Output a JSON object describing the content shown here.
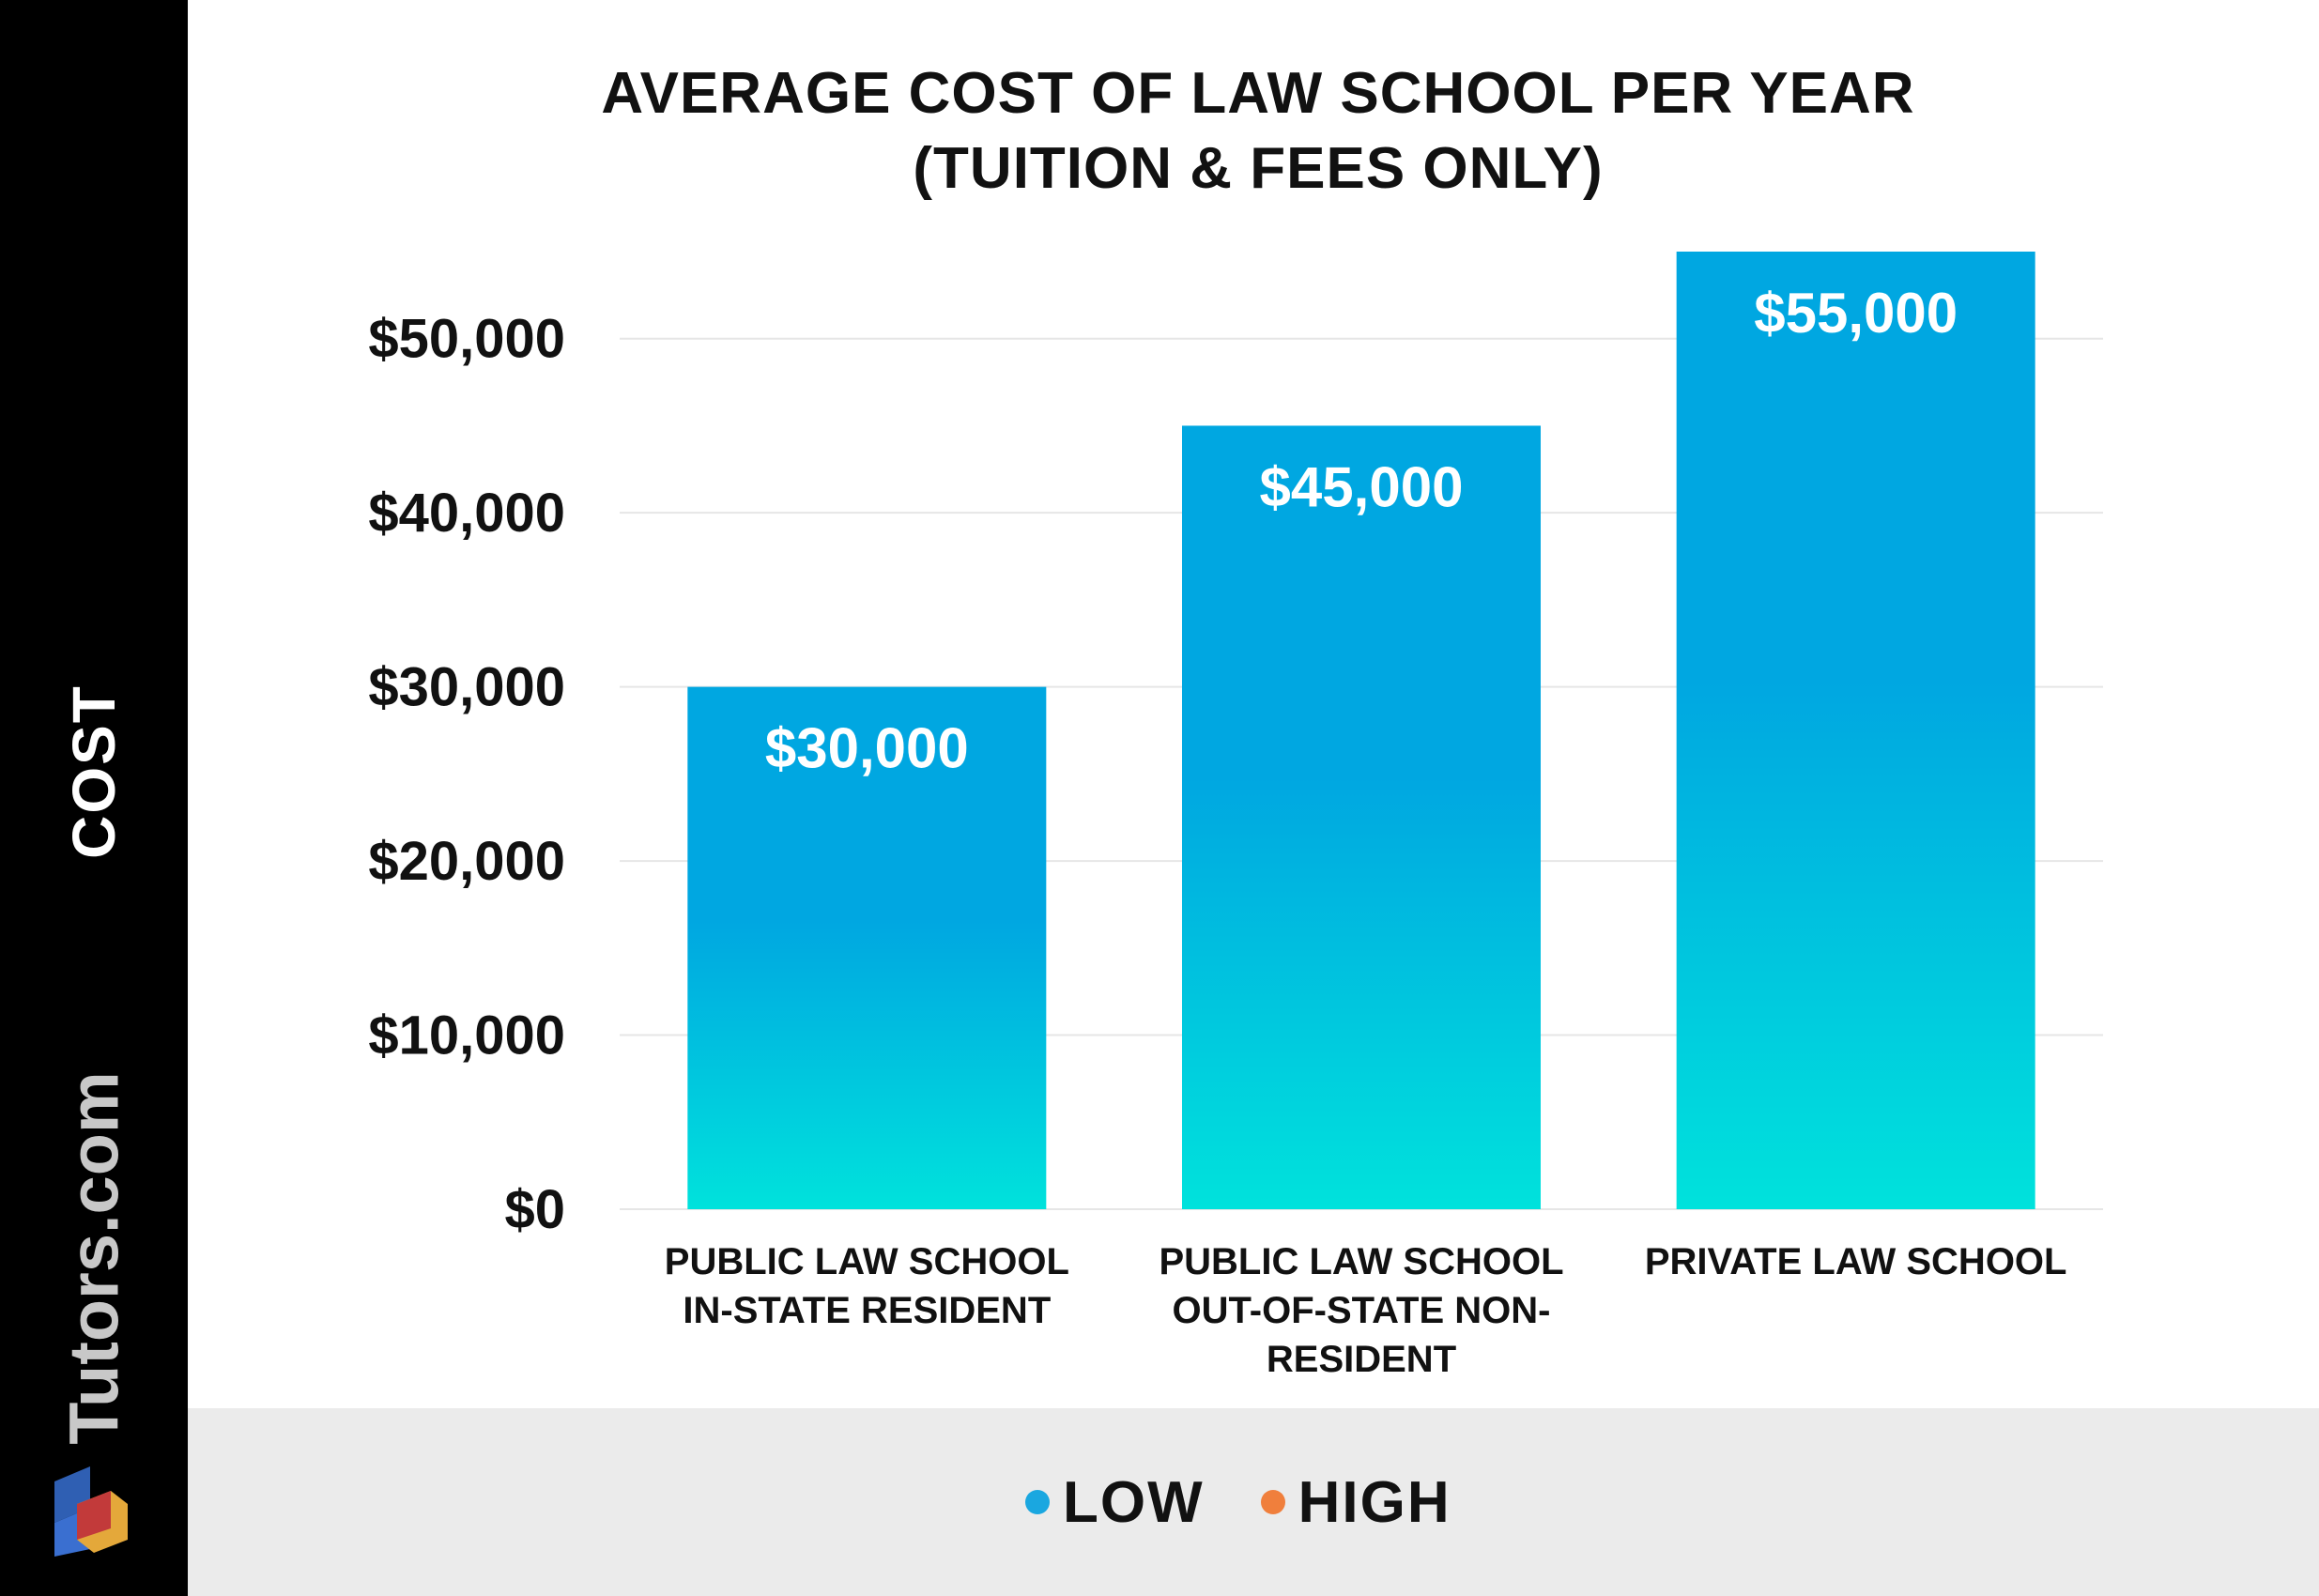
{
  "sidebar": {
    "label": "COST",
    "brand": "Tutors.com"
  },
  "colors": {
    "sidebar_bg": "#000000",
    "legend_bg": "#ebebeb",
    "bar_top": "#00a7e1",
    "bar_bottom": "#00e2dc",
    "low": "#1aa7e0",
    "high": "#f07f3c"
  },
  "legend": {
    "items": [
      {
        "label": "LOW",
        "color": "#1aa7e0"
      },
      {
        "label": "HIGH",
        "color": "#f07f3c"
      }
    ]
  },
  "chart_data": {
    "type": "bar",
    "title": "AVERAGE COST OF LAW SCHOOL PER YEAR",
    "subtitle": "(TUITION & FEES ONLY)",
    "ylabel": "COST",
    "xlabel": "",
    "categories": [
      [
        "PUBLIC LAW SCHOOL",
        "IN-STATE RESIDENT"
      ],
      [
        "PUBLIC LAW SCHOOL",
        "OUT-OF-STATE NON-",
        "RESIDENT"
      ],
      [
        "PRIVATE LAW SCHOOL"
      ]
    ],
    "values": [
      30000,
      45000,
      55000
    ],
    "data_labels": [
      "$30,000",
      "$45,000",
      "$55,000"
    ],
    "ylim": [
      0,
      55000
    ],
    "yticks": [
      0,
      10000,
      20000,
      30000,
      40000,
      50000
    ],
    "ytick_labels": [
      "$0",
      "$10,000",
      "$20,000",
      "$30,000",
      "$40,000",
      "$50,000"
    ],
    "grid": true,
    "legend_position": "bottom"
  }
}
